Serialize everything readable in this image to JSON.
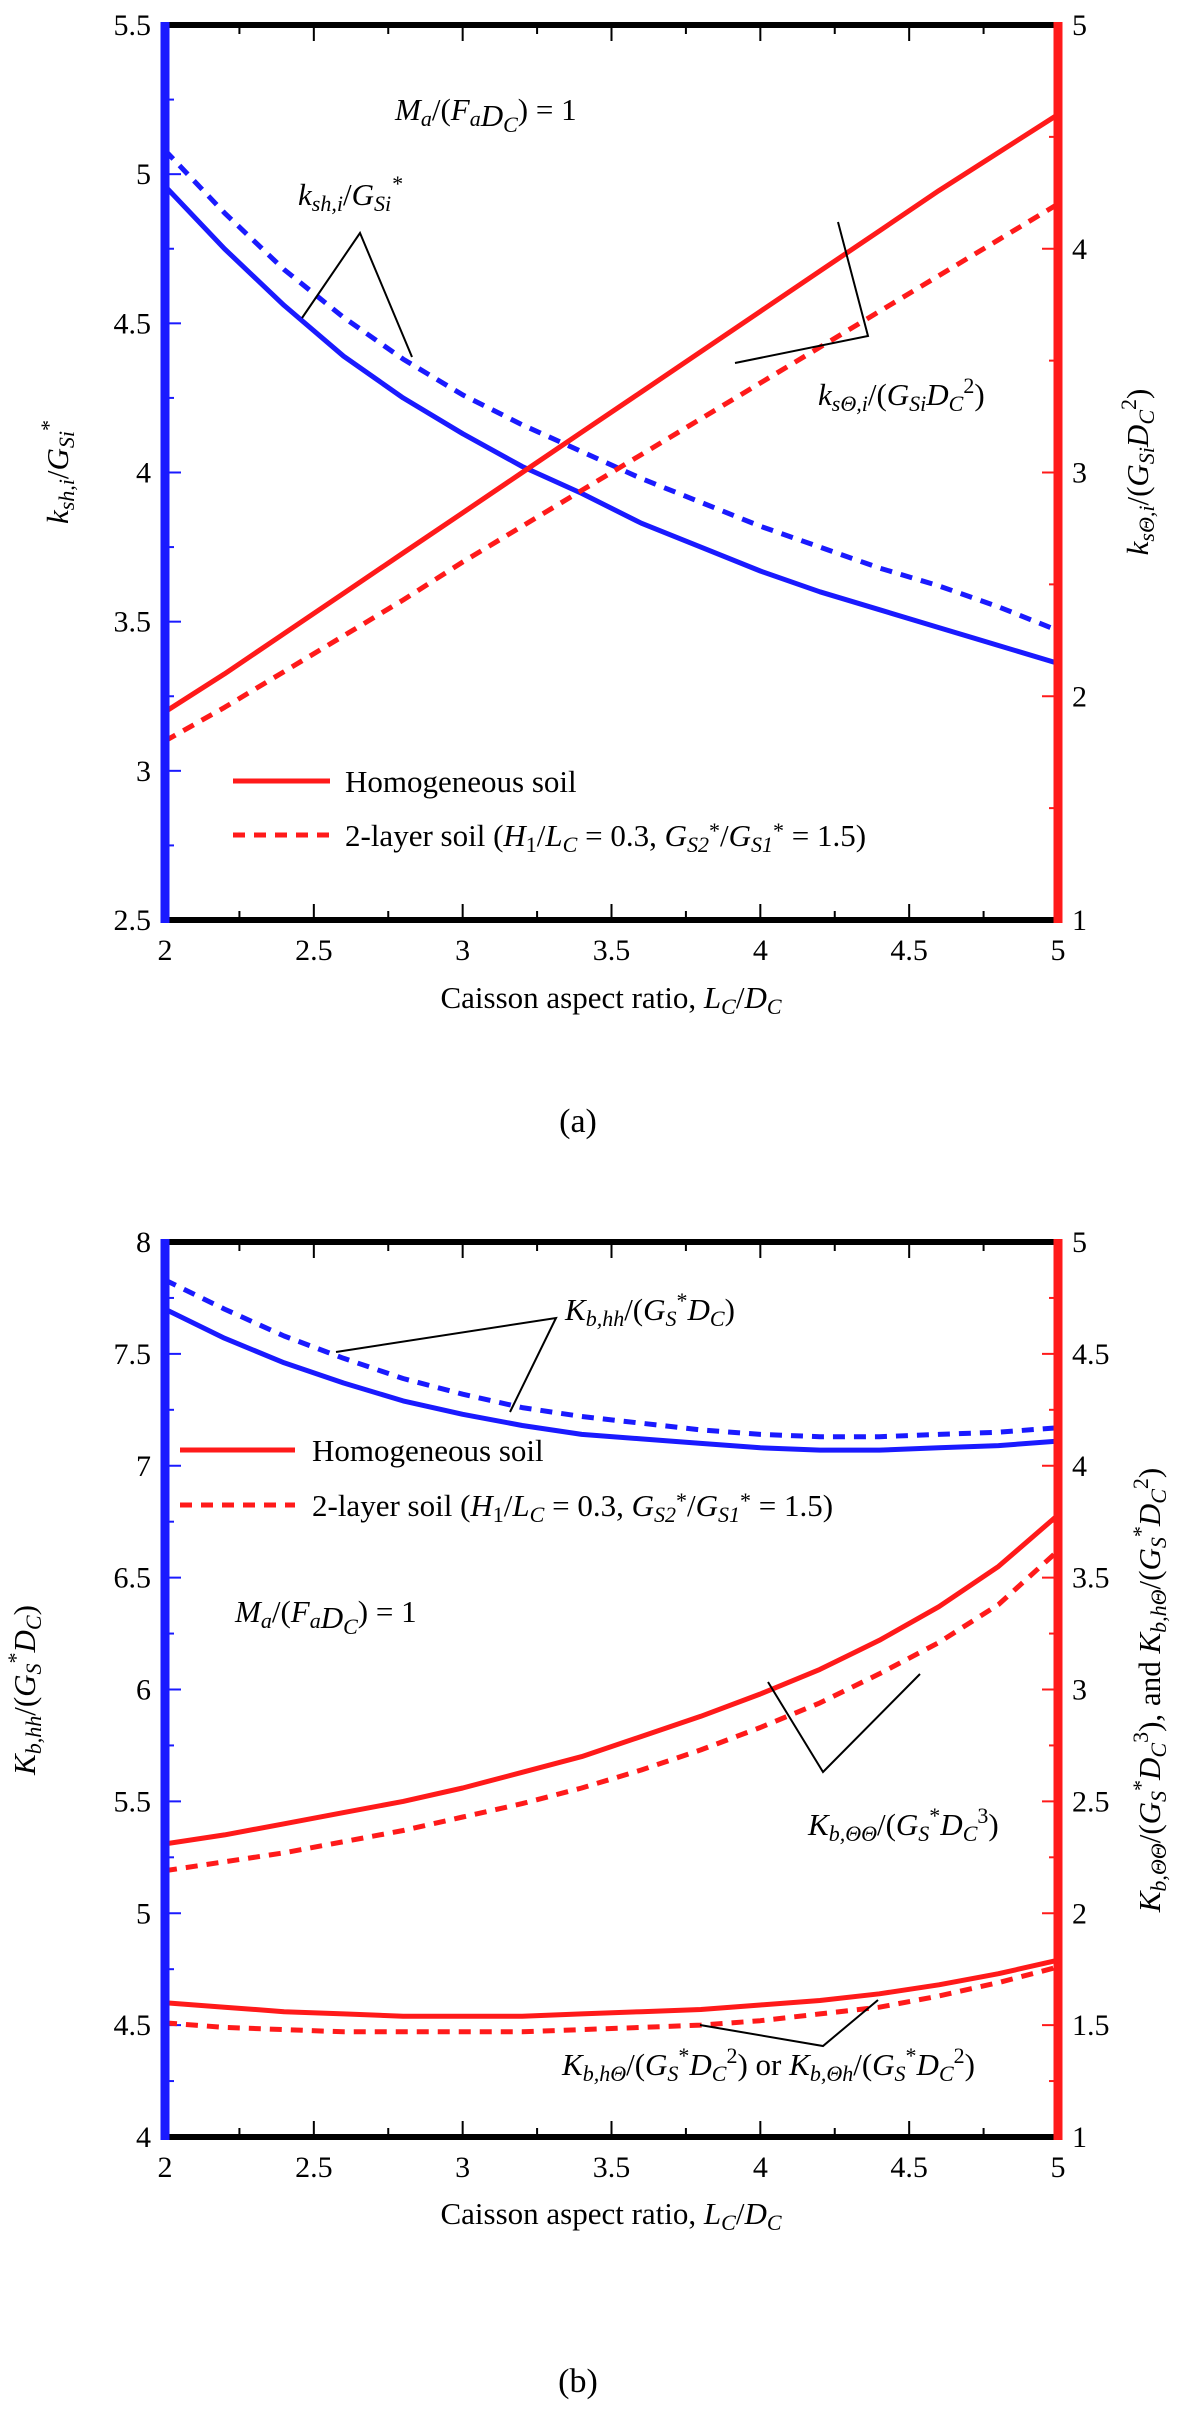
{
  "colors": {
    "blue": "#1a1aff",
    "red": "#ff1a1a",
    "black": "#000000"
  },
  "chart_data": [
    {
      "type": "line",
      "panel_label": "(a)",
      "x": [
        2.0,
        2.2,
        2.4,
        2.6,
        2.8,
        3.0,
        3.2,
        3.4,
        3.6,
        3.8,
        4.0,
        4.2,
        4.4,
        4.6,
        4.8,
        5.0
      ],
      "xlim": [
        2,
        5
      ],
      "x_ticks": [
        "2",
        "2.5",
        "3",
        "3.5",
        "4",
        "4.5",
        "5"
      ],
      "xlabel": "Caisson aspect ratio, L_C/D_C",
      "y_left": {
        "label": "k_sh,i/G_Si*",
        "lim": [
          2.5,
          5.5
        ],
        "ticks": [
          "2.5",
          "3",
          "3.5",
          "4",
          "4.5",
          "5",
          "5.5"
        ]
      },
      "y_right": {
        "label": "k_sΘ,i/(G_Si D_C²)",
        "lim": [
          1,
          5
        ],
        "ticks": [
          "1",
          "2",
          "3",
          "4",
          "5"
        ]
      },
      "legend": [
        {
          "label": "Homogeneous soil",
          "style": "solid"
        },
        {
          "label": "2-layer soil (H₁/L_C = 0.3, G_S2*/G_S1* = 1.5)",
          "style": "dashed"
        }
      ],
      "annotations": [
        "M_a/(F_a D_C) = 1",
        "k_sh,i/G_Si*",
        "k_sΘ,i/(G_Si D_C²)"
      ],
      "series": [
        {
          "axis": "left",
          "color": "#1a1aff",
          "dash": false,
          "values": [
            4.96,
            4.75,
            4.56,
            4.39,
            4.25,
            4.13,
            4.02,
            3.93,
            3.83,
            3.75,
            3.67,
            3.6,
            3.54,
            3.48,
            3.42,
            3.36
          ]
        },
        {
          "axis": "left",
          "color": "#1a1aff",
          "dash": true,
          "values": [
            5.08,
            4.87,
            4.68,
            4.52,
            4.38,
            4.26,
            4.16,
            4.07,
            3.98,
            3.9,
            3.82,
            3.75,
            3.68,
            3.62,
            3.55,
            3.47
          ]
        },
        {
          "axis": "right",
          "color": "#ff1a1a",
          "dash": false,
          "values": [
            1.93,
            2.1,
            2.28,
            2.46,
            2.64,
            2.82,
            3.0,
            3.18,
            3.36,
            3.54,
            3.72,
            3.9,
            4.08,
            4.26,
            4.43,
            4.6
          ]
        },
        {
          "axis": "right",
          "color": "#ff1a1a",
          "dash": true,
          "values": [
            1.8,
            1.95,
            2.11,
            2.27,
            2.43,
            2.6,
            2.76,
            2.92,
            3.08,
            3.24,
            3.4,
            3.56,
            3.72,
            3.88,
            4.04,
            4.2
          ]
        }
      ]
    },
    {
      "type": "line",
      "panel_label": "(b)",
      "x": [
        2.0,
        2.2,
        2.4,
        2.6,
        2.8,
        3.0,
        3.2,
        3.4,
        3.6,
        3.8,
        4.0,
        4.2,
        4.4,
        4.6,
        4.8,
        5.0
      ],
      "xlim": [
        2,
        5
      ],
      "x_ticks": [
        "2",
        "2.5",
        "3",
        "3.5",
        "4",
        "4.5",
        "5"
      ],
      "xlabel": "Caisson aspect ratio, L_C/D_C",
      "y_left": {
        "label": "K_b,hh/(G_S* D_C)",
        "lim": [
          4,
          8
        ],
        "ticks": [
          "4",
          "4.5",
          "5",
          "5.5",
          "6",
          "6.5",
          "7",
          "7.5",
          "8"
        ]
      },
      "y_right": {
        "label": "K_b,ΘΘ/(G_S* D_C³), and K_b,hΘ/(G_S* D_C²)",
        "lim": [
          1,
          5
        ],
        "ticks": [
          "1",
          "1.5",
          "2",
          "2.5",
          "3",
          "3.5",
          "4",
          "4.5",
          "5"
        ]
      },
      "legend": [
        {
          "label": "Homogeneous soil",
          "style": "solid"
        },
        {
          "label": "2-layer soil (H₁/L_C = 0.3, G_S2*/G_S1* = 1.5)",
          "style": "dashed"
        }
      ],
      "annotations": [
        "M_a/(F_a D_C) = 1",
        "K_b,hh/(G_S* D_C)",
        "K_b,ΘΘ/(G_S* D_C³)",
        "K_b,hΘ/(G_S* D_C²) or K_b,Θh/(G_S* D_C²)"
      ],
      "series": [
        {
          "axis": "left",
          "color": "#1a1aff",
          "dash": false,
          "values": [
            7.7,
            7.57,
            7.46,
            7.37,
            7.29,
            7.23,
            7.18,
            7.14,
            7.12,
            7.1,
            7.08,
            7.07,
            7.07,
            7.08,
            7.09,
            7.11
          ]
        },
        {
          "axis": "left",
          "color": "#1a1aff",
          "dash": true,
          "values": [
            7.83,
            7.7,
            7.58,
            7.48,
            7.39,
            7.32,
            7.26,
            7.22,
            7.19,
            7.16,
            7.14,
            7.13,
            7.13,
            7.14,
            7.15,
            7.17
          ]
        },
        {
          "axis": "right",
          "color": "#ff1a1a",
          "dash": false,
          "values": [
            2.31,
            2.35,
            2.4,
            2.45,
            2.5,
            2.56,
            2.63,
            2.7,
            2.79,
            2.88,
            2.98,
            3.09,
            3.22,
            3.37,
            3.55,
            3.78
          ]
        },
        {
          "axis": "right",
          "color": "#ff1a1a",
          "dash": true,
          "values": [
            2.19,
            2.23,
            2.27,
            2.32,
            2.37,
            2.43,
            2.49,
            2.56,
            2.64,
            2.73,
            2.83,
            2.94,
            3.07,
            3.21,
            3.38,
            3.62
          ]
        },
        {
          "axis": "right",
          "color": "#ff1a1a",
          "dash": false,
          "values": [
            1.6,
            1.58,
            1.56,
            1.55,
            1.54,
            1.54,
            1.54,
            1.55,
            1.56,
            1.57,
            1.59,
            1.61,
            1.64,
            1.68,
            1.73,
            1.79
          ]
        },
        {
          "axis": "right",
          "color": "#ff1a1a",
          "dash": true,
          "values": [
            1.51,
            1.49,
            1.48,
            1.47,
            1.47,
            1.47,
            1.47,
            1.48,
            1.49,
            1.5,
            1.52,
            1.55,
            1.58,
            1.63,
            1.69,
            1.76
          ]
        }
      ]
    }
  ]
}
